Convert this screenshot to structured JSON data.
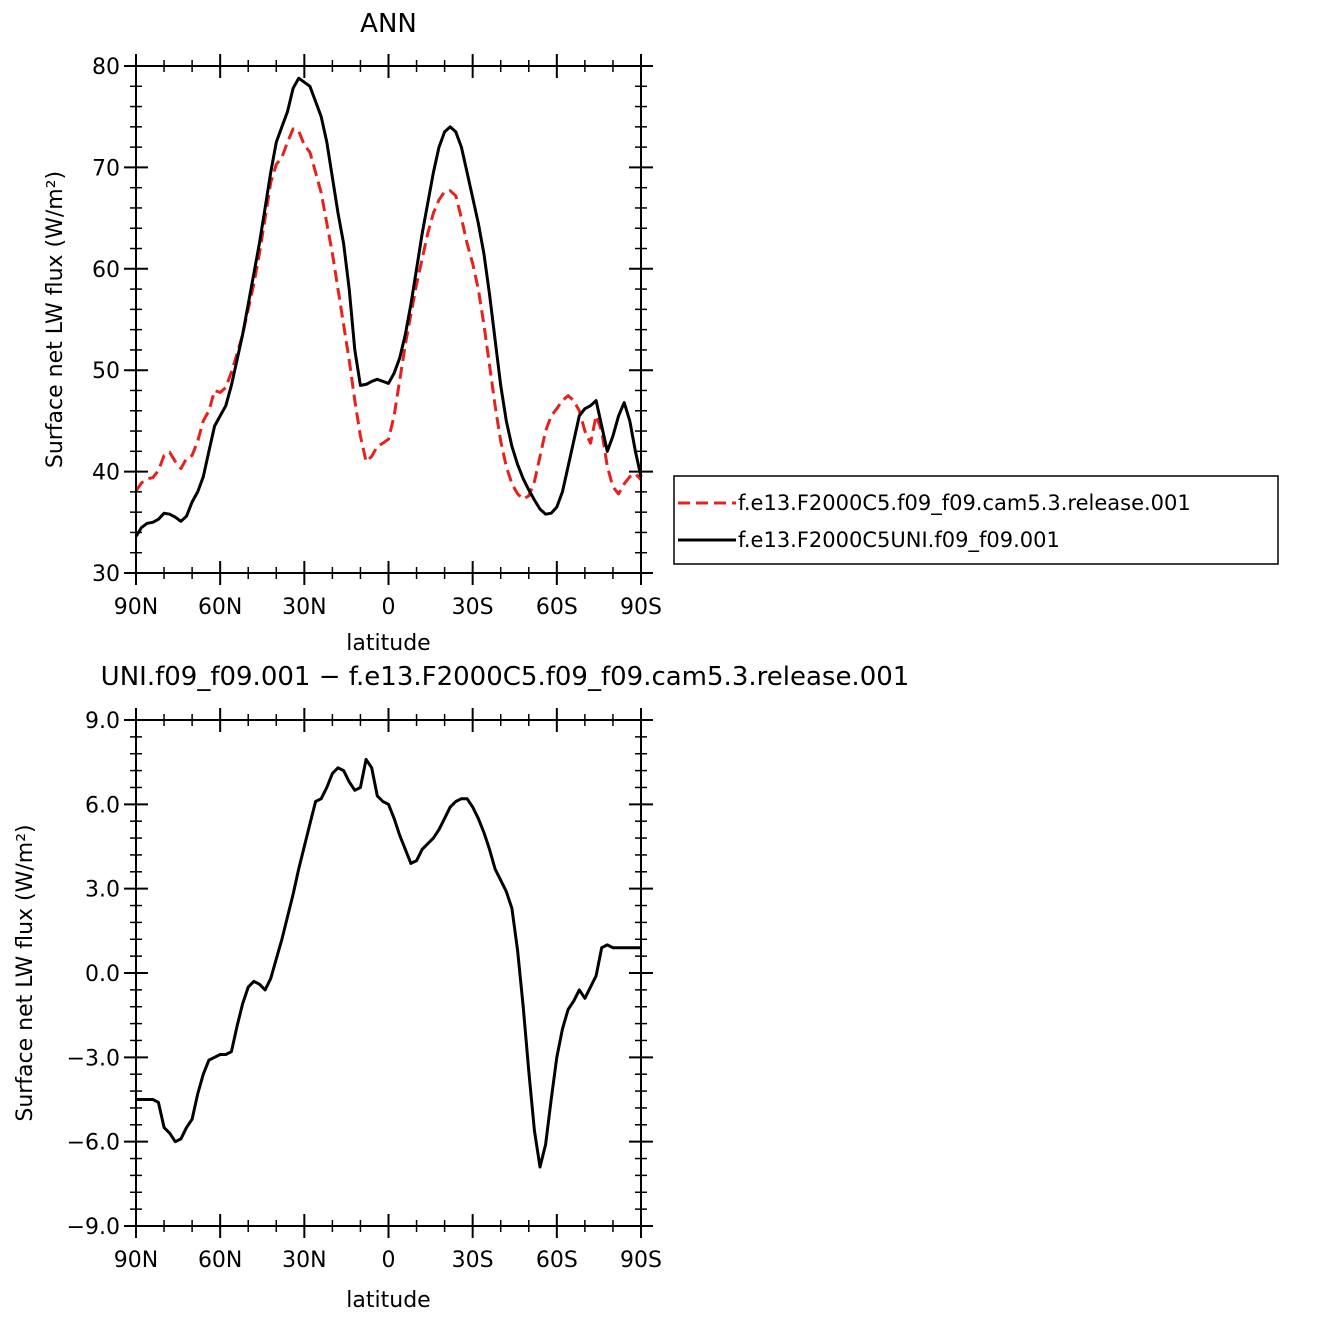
{
  "chart_data": [
    {
      "type": "line",
      "title": "ANN",
      "xlabel": "latitude",
      "ylabel": "Surface net LW flux (W/m²)",
      "xlim": [
        90,
        -90
      ],
      "ylim": [
        30,
        80
      ],
      "yticks": [
        30,
        40,
        50,
        60,
        70,
        80
      ],
      "ytick_labels": [
        "30",
        "40",
        "50",
        "60",
        "70",
        "80"
      ],
      "xticks": [
        90,
        60,
        30,
        0,
        -30,
        -60,
        -90
      ],
      "xtick_labels": [
        "90N",
        "60N",
        "30N",
        "0",
        "30S",
        "60S",
        "90S"
      ],
      "grid": false,
      "legend_position": "right",
      "series": [
        {
          "name": "f.e13.F2000C5.f09_f09.cam5.3.release.001",
          "color": "#e8211b",
          "style": "dashed",
          "x": [
            90,
            88,
            86,
            84,
            82,
            80,
            78,
            76,
            74,
            72,
            70,
            68,
            66,
            64,
            62,
            60,
            58,
            56,
            54,
            52,
            50,
            48,
            46,
            44,
            42,
            40,
            38,
            36,
            34,
            32,
            30,
            28,
            26,
            24,
            22,
            20,
            18,
            16,
            14,
            12,
            10,
            8,
            6,
            4,
            2,
            0,
            -2,
            -4,
            -6,
            -8,
            -10,
            -12,
            -14,
            -16,
            -18,
            -20,
            -22,
            -24,
            -26,
            -28,
            -30,
            -32,
            -34,
            -36,
            -38,
            -40,
            -42,
            -44,
            -46,
            -48,
            -50,
            -52,
            -54,
            -56,
            -58,
            -60,
            -62,
            -64,
            -66,
            -68,
            -70,
            -72,
            -74,
            -76,
            -78,
            -80,
            -82,
            -84,
            -86,
            -88,
            -90
          ],
          "y": [
            38.1,
            38.9,
            39.3,
            39.4,
            40.1,
            41.6,
            41.9,
            41.0,
            40.3,
            41.3,
            41.6,
            43.0,
            45.0,
            46.0,
            48.0,
            47.8,
            48.3,
            49.8,
            51.6,
            53.5,
            56.0,
            58.5,
            61.5,
            65.0,
            68.5,
            70.3,
            71.0,
            72.5,
            73.8,
            73.6,
            72.2,
            71.5,
            69.5,
            67.5,
            64.5,
            61.5,
            58.0,
            54.5,
            51.0,
            47.0,
            43.5,
            41.0,
            41.5,
            42.5,
            42.8,
            43.2,
            45.5,
            49.0,
            52.5,
            55.5,
            58.5,
            61.0,
            63.5,
            65.5,
            66.8,
            67.6,
            67.7,
            67.2,
            65.0,
            62.5,
            60.5,
            58.0,
            54.5,
            50.5,
            46.5,
            43.0,
            40.5,
            38.8,
            37.8,
            37.3,
            37.6,
            39.0,
            41.5,
            44.0,
            45.5,
            46.2,
            47.0,
            47.5,
            47.0,
            46.0,
            44.0,
            42.8,
            45.5,
            44.0,
            40.5,
            38.5,
            37.8,
            38.8,
            39.5,
            39.8,
            39.2
          ],
          "x_note": "",
          "y_note": ""
        },
        {
          "name": "f.e13.F2000C5UNI.f09_f09.001",
          "color": "#000000",
          "style": "solid",
          "x": [
            90,
            88,
            86,
            84,
            82,
            80,
            78,
            76,
            74,
            72,
            70,
            68,
            66,
            64,
            62,
            60,
            58,
            56,
            54,
            52,
            50,
            48,
            46,
            44,
            42,
            40,
            38,
            36,
            34,
            32,
            30,
            28,
            26,
            24,
            22,
            20,
            18,
            16,
            14,
            12,
            10,
            8,
            6,
            4,
            2,
            0,
            -2,
            -4,
            -6,
            -8,
            -10,
            -12,
            -14,
            -16,
            -18,
            -20,
            -22,
            -24,
            -26,
            -28,
            -30,
            -32,
            -34,
            -36,
            -38,
            -40,
            -42,
            -44,
            -46,
            -48,
            -50,
            -52,
            -54,
            -56,
            -58,
            -60,
            -62,
            -64,
            -66,
            -68,
            -70,
            -72,
            -74,
            -76,
            -78,
            -80,
            -82,
            -84,
            -86,
            -88,
            -90
          ],
          "y": [
            33.6,
            34.5,
            34.9,
            35.0,
            35.3,
            35.9,
            35.8,
            35.5,
            35.1,
            35.6,
            37.0,
            38.0,
            39.5,
            42.0,
            44.5,
            45.5,
            46.5,
            48.5,
            51.0,
            53.5,
            56.5,
            59.5,
            62.5,
            66.0,
            69.5,
            72.5,
            74.0,
            75.5,
            77.8,
            78.8,
            78.4,
            78.0,
            76.5,
            75.0,
            72.5,
            69.0,
            65.5,
            62.5,
            58.0,
            52.0,
            48.5,
            48.6,
            48.9,
            49.1,
            48.9,
            48.7,
            49.7,
            51.2,
            53.5,
            56.5,
            60.0,
            63.5,
            66.5,
            69.5,
            72.0,
            73.5,
            74.0,
            73.5,
            72.0,
            69.5,
            67.0,
            64.5,
            61.5,
            57.5,
            53.0,
            48.5,
            45.0,
            42.5,
            40.7,
            39.3,
            38.2,
            37.2,
            36.3,
            35.8,
            35.9,
            36.5,
            38.0,
            40.5,
            43.0,
            45.5,
            46.2,
            46.5,
            47.0,
            44.5,
            42.0,
            43.5,
            45.5,
            46.8,
            45.0,
            42.0,
            39.5
          ]
        }
      ]
    },
    {
      "type": "line",
      "title": "UNI.f09_f09.001 − f.e13.F2000C5.f09_f09.cam5.3.release.001",
      "xlabel": "latitude",
      "ylabel": "Surface net LW flux (W/m²)",
      "xlim": [
        90,
        -90
      ],
      "ylim": [
        -9,
        9
      ],
      "yticks": [
        -9,
        -6,
        -3,
        0,
        3,
        6,
        9
      ],
      "ytick_labels": [
        "−9.0",
        "−6.0",
        "−3.0",
        "0.0",
        "3.0",
        "6.0",
        "9.0"
      ],
      "xticks": [
        90,
        60,
        30,
        0,
        -30,
        -60,
        -90
      ],
      "xtick_labels": [
        "90N",
        "60N",
        "30N",
        "0",
        "30S",
        "60S",
        "90S"
      ],
      "grid": false,
      "series": [
        {
          "name": "",
          "color": "#000000",
          "style": "solid",
          "x": [
            90,
            88,
            86,
            84,
            82,
            80,
            78,
            76,
            74,
            72,
            70,
            68,
            66,
            64,
            62,
            60,
            58,
            56,
            54,
            52,
            50,
            48,
            46,
            44,
            42,
            40,
            38,
            36,
            34,
            32,
            30,
            28,
            26,
            24,
            22,
            20,
            18,
            16,
            14,
            12,
            10,
            8,
            6,
            4,
            2,
            0,
            -2,
            -4,
            -6,
            -8,
            -10,
            -12,
            -14,
            -16,
            -18,
            -20,
            -22,
            -24,
            -26,
            -28,
            -30,
            -32,
            -34,
            -36,
            -38,
            -40,
            -42,
            -44,
            -46,
            -48,
            -50,
            -52,
            -54,
            -56,
            -58,
            -60,
            -62,
            -64,
            -66,
            -68,
            -70,
            -72,
            -74,
            -76,
            -78,
            -80,
            -82,
            -84,
            -86,
            -88,
            -90
          ],
          "y": [
            -4.5,
            -4.5,
            -4.5,
            -4.5,
            -4.6,
            -5.5,
            -5.7,
            -6.0,
            -5.9,
            -5.5,
            -5.2,
            -4.3,
            -3.6,
            -3.1,
            -3.0,
            -2.9,
            -2.9,
            -2.8,
            -1.9,
            -1.1,
            -0.5,
            -0.3,
            -0.4,
            -0.6,
            -0.2,
            0.5,
            1.2,
            2.0,
            2.8,
            3.7,
            4.5,
            5.3,
            6.1,
            6.2,
            6.6,
            7.1,
            7.3,
            7.2,
            6.8,
            6.5,
            6.6,
            7.6,
            7.3,
            6.3,
            6.1,
            6.0,
            5.5,
            4.9,
            4.4,
            3.9,
            4.0,
            4.4,
            4.6,
            4.8,
            5.1,
            5.5,
            5.9,
            6.1,
            6.2,
            6.2,
            5.9,
            5.5,
            5.0,
            4.4,
            3.7,
            3.3,
            2.9,
            2.3,
            0.8,
            -1.2,
            -3.5,
            -5.6,
            -6.9,
            -6.1,
            -4.5,
            -3.0,
            -2.0,
            -1.3,
            -1.0,
            -0.6,
            -0.9,
            -0.5,
            -0.1,
            0.9,
            1.0,
            0.9,
            0.9,
            0.9,
            0.9,
            0.9,
            0.9
          ]
        }
      ]
    }
  ]
}
